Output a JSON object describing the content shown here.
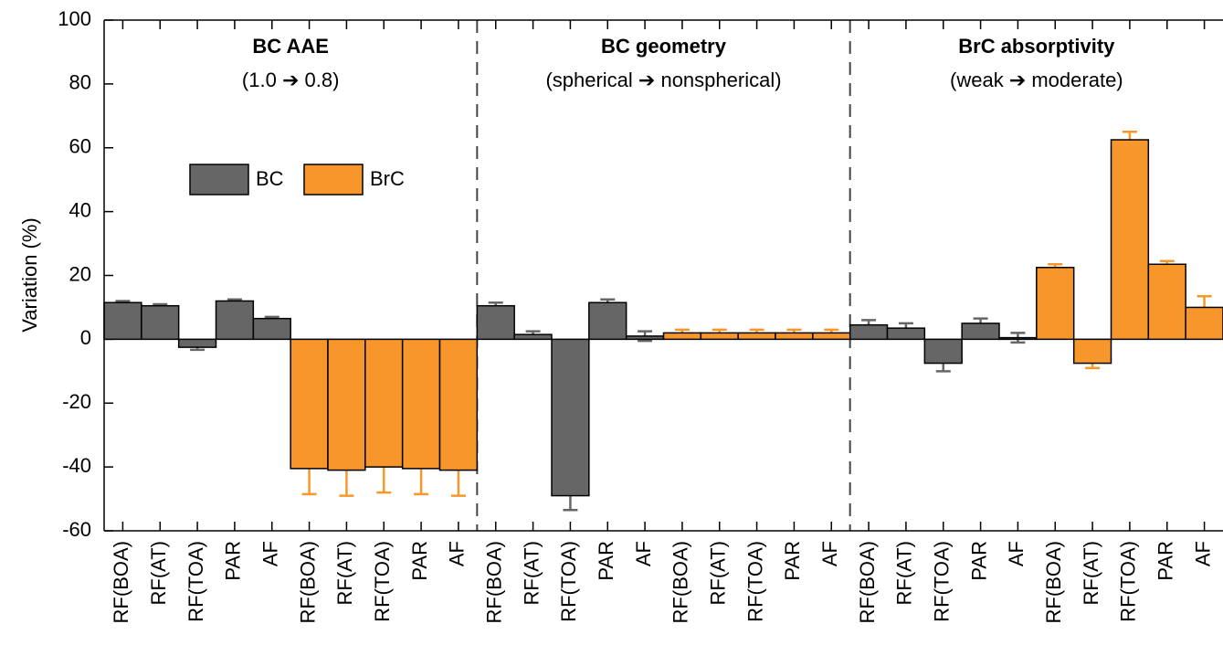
{
  "chart_data": {
    "type": "bar",
    "ylabel": "Variation (%)",
    "panels": [
      {
        "title": "BC AAE",
        "subtitle": "(1.0 ➔ 0.8)"
      },
      {
        "title": "BC geometry",
        "subtitle": "(spherical ➔ nonspherical)"
      },
      {
        "title": "BrC absorptivity",
        "subtitle": "(weak ➔ moderate)"
      }
    ],
    "categories": [
      "RF(BOA)",
      "RF(AT)",
      "RF(TOA)",
      "PAR",
      "AF",
      "RF(BOA)",
      "RF(AT)",
      "RF(TOA)",
      "PAR",
      "AF",
      "RF(BOA)",
      "RF(AT)",
      "RF(TOA)",
      "PAR",
      "AF",
      "RF(BOA)",
      "RF(AT)",
      "RF(TOA)",
      "PAR",
      "AF",
      "RF(BOA)",
      "RF(AT)",
      "RF(TOA)",
      "PAR",
      "AF",
      "RF(BOA)",
      "RF(AT)",
      "RF(TOA)",
      "PAR",
      "AF"
    ],
    "series": [
      {
        "name": "BC",
        "color": "#666666",
        "values": [
          11.5,
          10.5,
          -2.5,
          12,
          6.5,
          null,
          null,
          null,
          null,
          null,
          10.5,
          1.5,
          -49,
          11.5,
          1,
          null,
          null,
          null,
          null,
          null,
          4.5,
          3.5,
          -7.5,
          5,
          0.5,
          null,
          null,
          null,
          null,
          null
        ],
        "errors": [
          0.5,
          0.5,
          0.8,
          0.5,
          0.5,
          null,
          null,
          null,
          null,
          null,
          1,
          1,
          4.5,
          1,
          1.5,
          null,
          null,
          null,
          null,
          null,
          1.5,
          1.5,
          2.5,
          1.5,
          1.5,
          null,
          null,
          null,
          null,
          null
        ]
      },
      {
        "name": "BrC",
        "color": "#f7962a",
        "values": [
          null,
          null,
          null,
          null,
          null,
          -40.5,
          -41,
          -40,
          -40.5,
          -41,
          null,
          null,
          null,
          null,
          null,
          2,
          2,
          2,
          2,
          2,
          null,
          null,
          null,
          null,
          null,
          22.5,
          -7.5,
          62.5,
          23.5,
          10
        ],
        "errors": [
          null,
          null,
          null,
          null,
          null,
          8,
          8,
          8,
          8,
          8,
          null,
          null,
          null,
          null,
          null,
          1,
          1,
          1,
          1,
          1,
          null,
          null,
          null,
          null,
          null,
          1,
          1.5,
          2.5,
          1,
          3.5
        ]
      }
    ],
    "ylim": [
      -60,
      100
    ],
    "yticks": [
      -60,
      -40,
      -20,
      0,
      20,
      40,
      60,
      80,
      100
    ],
    "legend": "upper left"
  }
}
